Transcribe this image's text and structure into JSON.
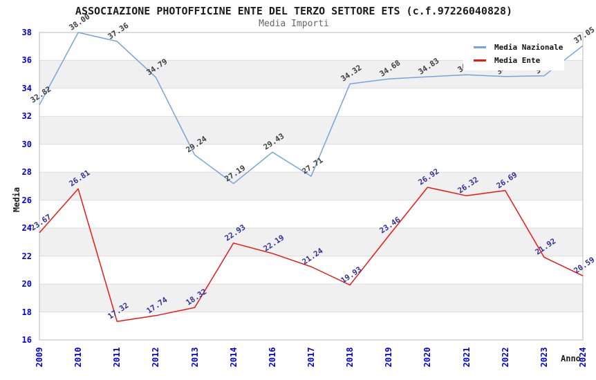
{
  "header": {
    "title": "ASSOCIAZIONE PHOTOFFICINE ENTE DEL TERZO SETTORE ETS (c.f.97226040828)",
    "subtitle": "Media Importi"
  },
  "legend": {
    "position": "top-right",
    "items": [
      {
        "label": "Media Nazionale",
        "color": "#75a3dd"
      },
      {
        "label": "Media Ente",
        "color": "#ee1515"
      }
    ]
  },
  "axes": {
    "y_title": "Media",
    "x_title": "Anno",
    "tick_color": "#0000dd",
    "y_ticks": [
      16,
      18,
      20,
      22,
      24,
      26,
      28,
      30,
      32,
      34,
      36,
      38
    ],
    "x_ticks": [
      "2009",
      "2010",
      "2011",
      "2012",
      "2013",
      "2014",
      "2016",
      "2017",
      "2018",
      "2019",
      "2020",
      "2021",
      "2022",
      "2023",
      "2024"
    ]
  },
  "chart_data": {
    "type": "line",
    "title": "ASSOCIAZIONE PHOTOFFICINE ENTE DEL TERZO SETTORE ETS (c.f.97226040828)",
    "subtitle": "Media Importi",
    "xlabel": "Anno",
    "ylabel": "Media",
    "ylim": [
      16,
      38
    ],
    "grid": "horizontal",
    "band_fill": "#f0f0f0",
    "gridline_color": "#dcdcdc",
    "border_color": "#b8b8b8",
    "x": [
      "2009",
      "2010",
      "2011",
      "2012",
      "2013",
      "2014",
      "2016",
      "2017",
      "2018",
      "2019",
      "2020",
      "2021",
      "2022",
      "2023",
      "2024"
    ],
    "series": [
      {
        "name": "Media Nazionale",
        "color": "#75a3dd",
        "label_color": "#3d3d3d",
        "values": [
          32.82,
          38.0,
          37.36,
          34.79,
          29.24,
          27.19,
          29.43,
          27.71,
          34.32,
          34.68,
          34.83,
          34.97,
          34.85,
          34.9,
          37.05
        ]
      },
      {
        "name": "Media Ente",
        "color": "#ee1515",
        "label_color": "#30309c",
        "values": [
          23.67,
          26.81,
          17.32,
          17.74,
          18.32,
          22.93,
          22.19,
          21.24,
          19.93,
          23.46,
          26.92,
          26.32,
          26.69,
          21.92,
          20.59
        ]
      }
    ]
  }
}
